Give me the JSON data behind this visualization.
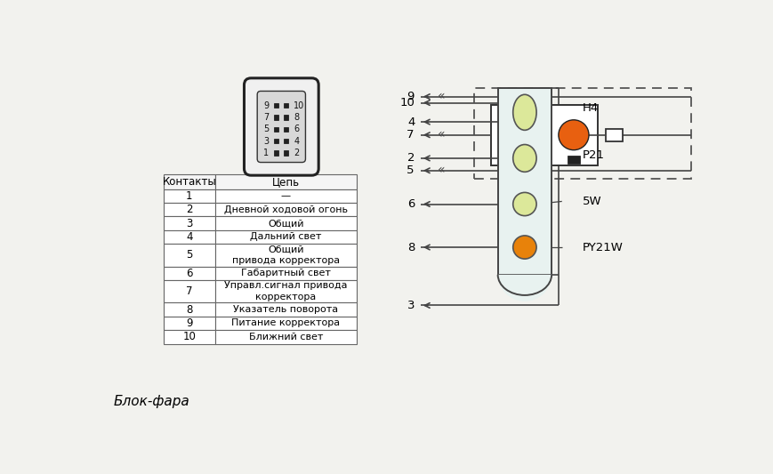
{
  "bg_color": "#f2f2ee",
  "table_contacts": [
    "1",
    "2",
    "3",
    "4",
    "5",
    "6",
    "7",
    "8",
    "9",
    "10"
  ],
  "table_chains": [
    "—",
    "Дневной ходовой огонь",
    "Общий",
    "Дальний свет",
    "Общий\nпривода корректора",
    "Габаритный свет",
    "Управл.сигнал привода\nкорректора",
    "Указатель поворота",
    "Питание корректора",
    "Ближний свет"
  ],
  "bottom_label": "Блок-фара",
  "lamp_labels": [
    "H4",
    "P21",
    "5W",
    "PY21W"
  ],
  "lamp_colors": [
    "#dce89a",
    "#dce89a",
    "#dce89a",
    "#e8820a"
  ],
  "line_color": "#444444",
  "dashed_color": "#555555"
}
